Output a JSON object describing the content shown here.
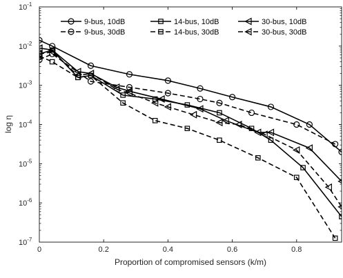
{
  "chart_data": {
    "type": "line",
    "xlabel": "Proportion of compromised sensors (k/m)",
    "ylabel": "log η",
    "xlim": [
      0,
      0.94
    ],
    "ylim": [
      -7,
      -1
    ],
    "y_scale": "log10",
    "x_ticks": [
      0,
      0.2,
      0.4,
      0.6,
      0.8
    ],
    "x_tick_labels": [
      "0",
      "0.2",
      "0.4",
      "0.6",
      "0.8"
    ],
    "y_ticks": [
      -7,
      -6,
      -5,
      -4,
      -3,
      -2,
      -1
    ],
    "y_tick_labels": [
      "10",
      "10",
      "10",
      "10",
      "10",
      "10",
      "10"
    ],
    "y_tick_exponents": [
      "-7",
      "-6",
      "-5",
      "-4",
      "-3",
      "-2",
      "-1"
    ],
    "grid": false,
    "legend_position": "top-right",
    "series": [
      {
        "name": "9-bus, 10dB",
        "marker": "circle",
        "dash": "solid",
        "x": [
          0,
          0.04,
          0.16,
          0.28,
          0.4,
          0.5,
          0.6,
          0.72,
          0.84,
          0.94
        ],
        "y": [
          -1.85,
          -2.0,
          -2.5,
          -2.72,
          -2.88,
          -3.08,
          -3.3,
          -3.55,
          -4.0,
          -4.7
        ]
      },
      {
        "name": "9-bus, 30dB",
        "marker": "circle",
        "dash": "dashed",
        "x": [
          0,
          0.04,
          0.16,
          0.28,
          0.4,
          0.5,
          0.56,
          0.66,
          0.8,
          0.92
        ],
        "y": [
          -2.35,
          -2.2,
          -2.9,
          -3.05,
          -3.2,
          -3.35,
          -3.45,
          -3.7,
          -4.0,
          -4.5
        ]
      },
      {
        "name": "14-bus, 10dB",
        "marker": "square",
        "dash": "solid",
        "x": [
          0,
          0.04,
          0.12,
          0.16,
          0.26,
          0.36,
          0.46,
          0.56,
          0.66,
          0.72,
          0.82,
          0.94
        ],
        "y": [
          -2.2,
          -2.1,
          -2.8,
          -2.75,
          -3.25,
          -3.35,
          -3.5,
          -3.7,
          -4.1,
          -4.4,
          -5.1,
          -6.35
        ]
      },
      {
        "name": "14-bus, 30dB",
        "marker": "square",
        "dash": "dashed",
        "x": [
          0,
          0.04,
          0.12,
          0.16,
          0.26,
          0.36,
          0.46,
          0.56,
          0.68,
          0.8,
          0.92
        ],
        "y": [
          -2.25,
          -2.4,
          -2.8,
          -2.75,
          -3.45,
          -3.9,
          -4.1,
          -4.4,
          -4.85,
          -5.35,
          -6.9
        ]
      },
      {
        "name": "30-bus, 10dB",
        "marker": "triangle-left",
        "dash": "solid",
        "x": [
          0,
          0.04,
          0.12,
          0.16,
          0.24,
          0.28,
          0.38,
          0.5,
          0.58,
          0.68,
          0.72,
          0.84,
          0.94
        ],
        "y": [
          -2.05,
          -2.1,
          -2.65,
          -2.7,
          -3.05,
          -3.15,
          -3.35,
          -3.6,
          -3.9,
          -4.2,
          -4.2,
          -4.6,
          -5.45
        ]
      },
      {
        "name": "30-bus, 30dB",
        "marker": "triangle-left",
        "dash": "dashed",
        "x": [
          0,
          0.04,
          0.12,
          0.16,
          0.24,
          0.28,
          0.36,
          0.4,
          0.48,
          0.56,
          0.62,
          0.7,
          0.8,
          0.9,
          0.94
        ],
        "y": [
          -2.2,
          -2.15,
          -2.75,
          -2.7,
          -3.1,
          -3.2,
          -3.45,
          -3.55,
          -3.75,
          -3.95,
          -4.0,
          -4.25,
          -4.65,
          -5.6,
          -6.1
        ]
      }
    ]
  }
}
